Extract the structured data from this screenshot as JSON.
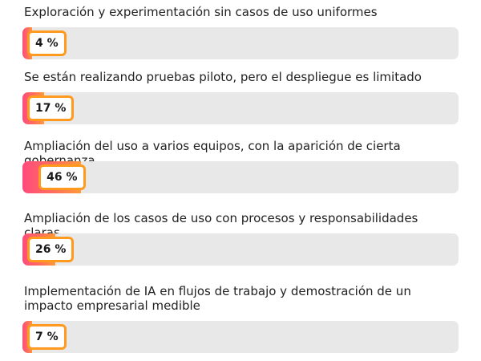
{
  "chart_data": {
    "type": "bar",
    "orientation": "horizontal",
    "categories": [
      "Exploración y experimentación sin casos de uso uniformes",
      "Se están realizando pruebas piloto, pero el despliegue es limitado",
      "Ampliación del uso a varios equipos, con la aparición de cierta gobernanza",
      "Ampliación de los casos de uso con procesos y responsabilidades claras",
      "Implementación de IA en flujos de trabajo y demostración de un impacto empresarial medible"
    ],
    "values": [
      4,
      17,
      46,
      26,
      7
    ],
    "value_labels": [
      "4 %",
      "17 %",
      "46 %",
      "26 %",
      "7 %"
    ],
    "unit": "%",
    "colors": {
      "bar_gradient_start": "#ff4b7d",
      "bar_gradient_end": "#ff9a3a",
      "tag_border": "#ff9a1e",
      "track": "#e8e8e8"
    },
    "xlim": [
      0,
      100
    ],
    "grid": false,
    "legend": "none"
  }
}
